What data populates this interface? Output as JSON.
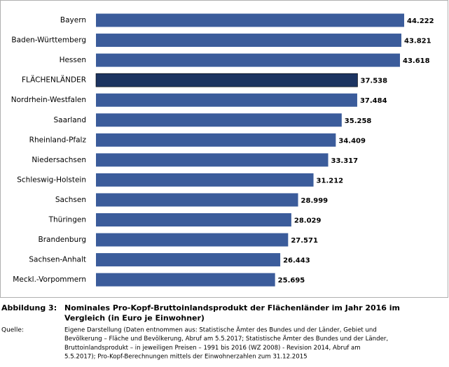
{
  "chart_data": {
    "type": "bar",
    "orientation": "horizontal",
    "categories": [
      "Bayern",
      "Baden-Württemberg",
      "Hessen",
      "FLÄCHENLÄNDER",
      "Nordrhein-Westfalen",
      "Saarland",
      "Rheinland-Pfalz",
      "Niedersachsen",
      "Schleswig-Holstein",
      "Sachsen",
      "Thüringen",
      "Brandenburg",
      "Sachsen-Anhalt",
      "Meckl.-Vorpommern"
    ],
    "values": [
      44222,
      43821,
      43618,
      37538,
      37484,
      35258,
      34409,
      33317,
      31212,
      28999,
      28029,
      27571,
      26443,
      25695
    ],
    "value_labels": [
      "44.222",
      "43.821",
      "43.618",
      "37.538",
      "37.484",
      "35.258",
      "34.409",
      "33.317",
      "31.212",
      "28.999",
      "28.029",
      "27.571",
      "26.443",
      "25.695"
    ],
    "colors": [
      "#3b5c9b",
      "#3b5c9b",
      "#3b5c9b",
      "#1c3461",
      "#3b5c9b",
      "#3b5c9b",
      "#3b5c9b",
      "#3b5c9b",
      "#3b5c9b",
      "#3b5c9b",
      "#3b5c9b",
      "#3b5c9b",
      "#3b5c9b",
      "#3b5c9b"
    ]
  },
  "caption": {
    "label": "Abbildung 3:",
    "title_lines": [
      "Nominales Pro-Kopf-Bruttoinlandsprodukt der Flächenländer im Jahr 2016 im",
      "Vergleich (in Euro je Einwohner)"
    ],
    "source_label": "Quelle:",
    "source_lines": [
      "Eigene Darstellung (Daten entnommen aus: Statistische Ämter des Bundes und der Länder, Gebiet und",
      "Bevölkerung – Fläche und Bevölkerung, Abruf am 5.5.2017; Statistische Ämter des Bundes und der Länder,",
      "Bruttoinlandsprodukt – in jeweiligen Preisen – 1991 bis 2016 (WZ 2008) - Revision 2014, Abruf am",
      "5.5.2017); Pro-Kopf-Berechnungen mittels der Einwohnerzahlen zum 31.12.2015"
    ]
  }
}
